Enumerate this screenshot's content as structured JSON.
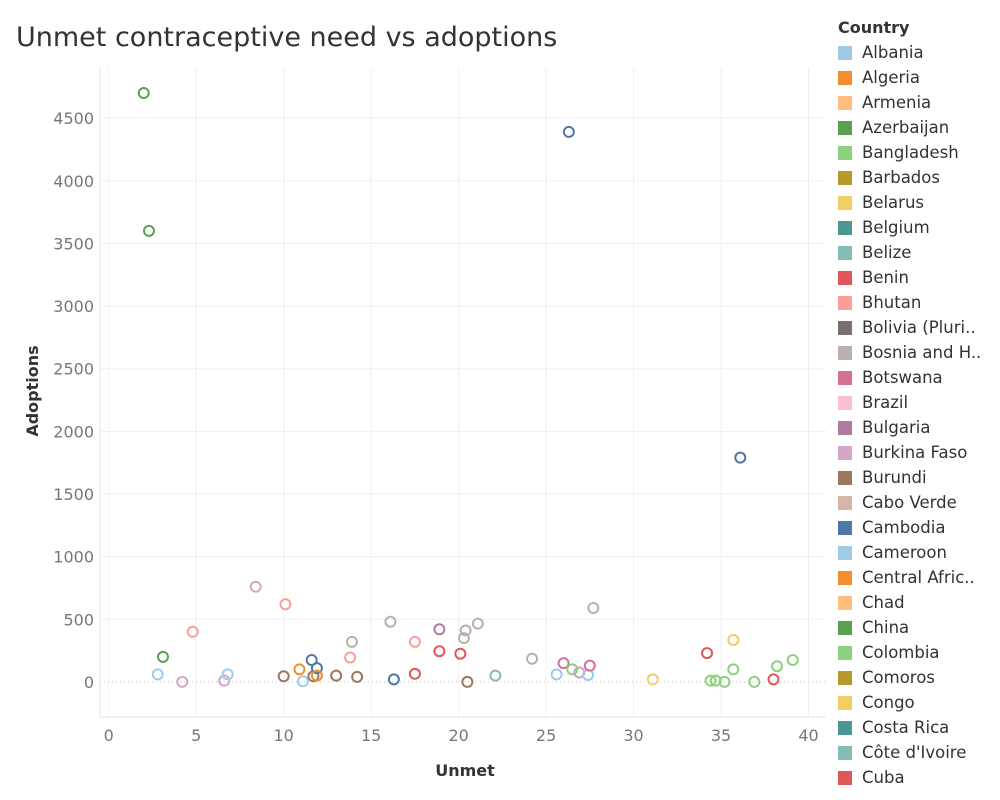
{
  "title": "Unmet contraceptive need vs adoptions",
  "chart_data": {
    "type": "scatter",
    "title": "Unmet contraceptive need vs adoptions",
    "xlabel": "Unmet",
    "ylabel": "Adoptions",
    "xlim": [
      -0.5,
      41
    ],
    "ylim": [
      -280,
      4900
    ],
    "x_ticks": [
      0,
      5,
      10,
      15,
      20,
      25,
      30,
      35,
      40
    ],
    "y_ticks": [
      0,
      500,
      1000,
      1500,
      2000,
      2500,
      3000,
      3500,
      4000,
      4500
    ],
    "grid": true,
    "zero_line": "dotted",
    "marker": "open-circle",
    "legend_title": "Country",
    "legend_position": "right",
    "legend": [
      {
        "name": "Albania",
        "color": "#9fcae6"
      },
      {
        "name": "Algeria",
        "color": "#f28e2b"
      },
      {
        "name": "Armenia",
        "color": "#ffbe7d"
      },
      {
        "name": "Azerbaijan",
        "color": "#59a14f"
      },
      {
        "name": "Bangladesh",
        "color": "#8cd17d"
      },
      {
        "name": "Barbados",
        "color": "#b6992d"
      },
      {
        "name": "Belarus",
        "color": "#f1ce63"
      },
      {
        "name": "Belgium",
        "color": "#499894"
      },
      {
        "name": "Belize",
        "color": "#86bcb6"
      },
      {
        "name": "Benin",
        "color": "#e15759"
      },
      {
        "name": "Bhutan",
        "color": "#ff9d9a"
      },
      {
        "name": "Bolivia (Pluri..",
        "color": "#79706e"
      },
      {
        "name": "Bosnia and H..",
        "color": "#bab0ac"
      },
      {
        "name": "Botswana",
        "color": "#d37295"
      },
      {
        "name": "Brazil",
        "color": "#fabfd2"
      },
      {
        "name": "Bulgaria",
        "color": "#b07aa1"
      },
      {
        "name": "Burkina Faso",
        "color": "#d4a6c8"
      },
      {
        "name": "Burundi",
        "color": "#9d7660"
      },
      {
        "name": "Cabo Verde",
        "color": "#d7b5a6"
      },
      {
        "name": "Cambodia",
        "color": "#4e79a7"
      },
      {
        "name": "Cameroon",
        "color": "#a0cbe8"
      },
      {
        "name": "Central Afric..",
        "color": "#f28e2b"
      },
      {
        "name": "Chad",
        "color": "#ffbe7d"
      },
      {
        "name": "China",
        "color": "#59a14f"
      },
      {
        "name": "Colombia",
        "color": "#8cd17d"
      },
      {
        "name": "Comoros",
        "color": "#b6992d"
      },
      {
        "name": "Congo",
        "color": "#f1ce63"
      },
      {
        "name": "Costa Rica",
        "color": "#499894"
      },
      {
        "name": "Côte d'Ivoire",
        "color": "#86bcb6"
      },
      {
        "name": "Cuba",
        "color": "#e15759"
      }
    ],
    "points": [
      {
        "x": 2.0,
        "y": 4700,
        "color": "#59a14f"
      },
      {
        "x": 2.3,
        "y": 3600,
        "color": "#59a14f"
      },
      {
        "x": 26.3,
        "y": 4390,
        "color": "#4e79a7"
      },
      {
        "x": 36.1,
        "y": 1790,
        "color": "#4e79a7"
      },
      {
        "x": 8.4,
        "y": 760,
        "color": "#d4a6c8"
      },
      {
        "x": 10.1,
        "y": 620,
        "color": "#ff9d9a"
      },
      {
        "x": 4.8,
        "y": 400,
        "color": "#ff9d9a"
      },
      {
        "x": 3.1,
        "y": 200,
        "color": "#59a14f"
      },
      {
        "x": 2.8,
        "y": 60,
        "color": "#a0cbe8"
      },
      {
        "x": 4.2,
        "y": 0,
        "color": "#d4a6c8"
      },
      {
        "x": 6.6,
        "y": 10,
        "color": "#d4a6c8"
      },
      {
        "x": 6.8,
        "y": 60,
        "color": "#a0cbe8"
      },
      {
        "x": 10.0,
        "y": 45,
        "color": "#9d7660"
      },
      {
        "x": 10.9,
        "y": 100,
        "color": "#f28e2b"
      },
      {
        "x": 11.1,
        "y": 5,
        "color": "#a0cbe8"
      },
      {
        "x": 11.6,
        "y": 175,
        "color": "#4e79a7"
      },
      {
        "x": 11.7,
        "y": 45,
        "color": "#9d7660"
      },
      {
        "x": 11.9,
        "y": 110,
        "color": "#4e79a7"
      },
      {
        "x": 11.9,
        "y": 50,
        "color": "#f28e2b"
      },
      {
        "x": 13.0,
        "y": 50,
        "color": "#9d7660"
      },
      {
        "x": 13.8,
        "y": 195,
        "color": "#ff9d9a"
      },
      {
        "x": 13.9,
        "y": 320,
        "color": "#bab0ac"
      },
      {
        "x": 14.2,
        "y": 40,
        "color": "#9d7660"
      },
      {
        "x": 16.1,
        "y": 480,
        "color": "#bab0ac"
      },
      {
        "x": 16.3,
        "y": 20,
        "color": "#4e79a7"
      },
      {
        "x": 17.5,
        "y": 320,
        "color": "#ff9d9a"
      },
      {
        "x": 17.5,
        "y": 65,
        "color": "#e15759"
      },
      {
        "x": 18.9,
        "y": 420,
        "color": "#b07aa1"
      },
      {
        "x": 18.9,
        "y": 245,
        "color": "#e15759"
      },
      {
        "x": 20.1,
        "y": 225,
        "color": "#e15759"
      },
      {
        "x": 20.3,
        "y": 350,
        "color": "#bab0ac"
      },
      {
        "x": 20.4,
        "y": 410,
        "color": "#bab0ac"
      },
      {
        "x": 20.5,
        "y": 0,
        "color": "#9d7660"
      },
      {
        "x": 21.1,
        "y": 465,
        "color": "#bab0ac"
      },
      {
        "x": 22.1,
        "y": 50,
        "color": "#86bcb6"
      },
      {
        "x": 24.2,
        "y": 185,
        "color": "#bab0ac"
      },
      {
        "x": 25.6,
        "y": 60,
        "color": "#a0cbe8"
      },
      {
        "x": 26.0,
        "y": 150,
        "color": "#d37295"
      },
      {
        "x": 26.5,
        "y": 100,
        "color": "#8cd17d"
      },
      {
        "x": 26.9,
        "y": 75,
        "color": "#bab0ac"
      },
      {
        "x": 27.4,
        "y": 55,
        "color": "#a0cbe8"
      },
      {
        "x": 27.5,
        "y": 130,
        "color": "#d37295"
      },
      {
        "x": 27.7,
        "y": 590,
        "color": "#bab0ac"
      },
      {
        "x": 31.1,
        "y": 20,
        "color": "#f1ce63"
      },
      {
        "x": 34.2,
        "y": 230,
        "color": "#e15759"
      },
      {
        "x": 34.4,
        "y": 10,
        "color": "#8cd17d"
      },
      {
        "x": 34.7,
        "y": 10,
        "color": "#8cd17d"
      },
      {
        "x": 35.2,
        "y": 0,
        "color": "#8cd17d"
      },
      {
        "x": 35.7,
        "y": 335,
        "color": "#f1ce63"
      },
      {
        "x": 35.7,
        "y": 100,
        "color": "#8cd17d"
      },
      {
        "x": 36.9,
        "y": 0,
        "color": "#8cd17d"
      },
      {
        "x": 38.0,
        "y": 20,
        "color": "#e15759"
      },
      {
        "x": 38.2,
        "y": 125,
        "color": "#8cd17d"
      },
      {
        "x": 39.1,
        "y": 175,
        "color": "#8cd17d"
      }
    ]
  }
}
